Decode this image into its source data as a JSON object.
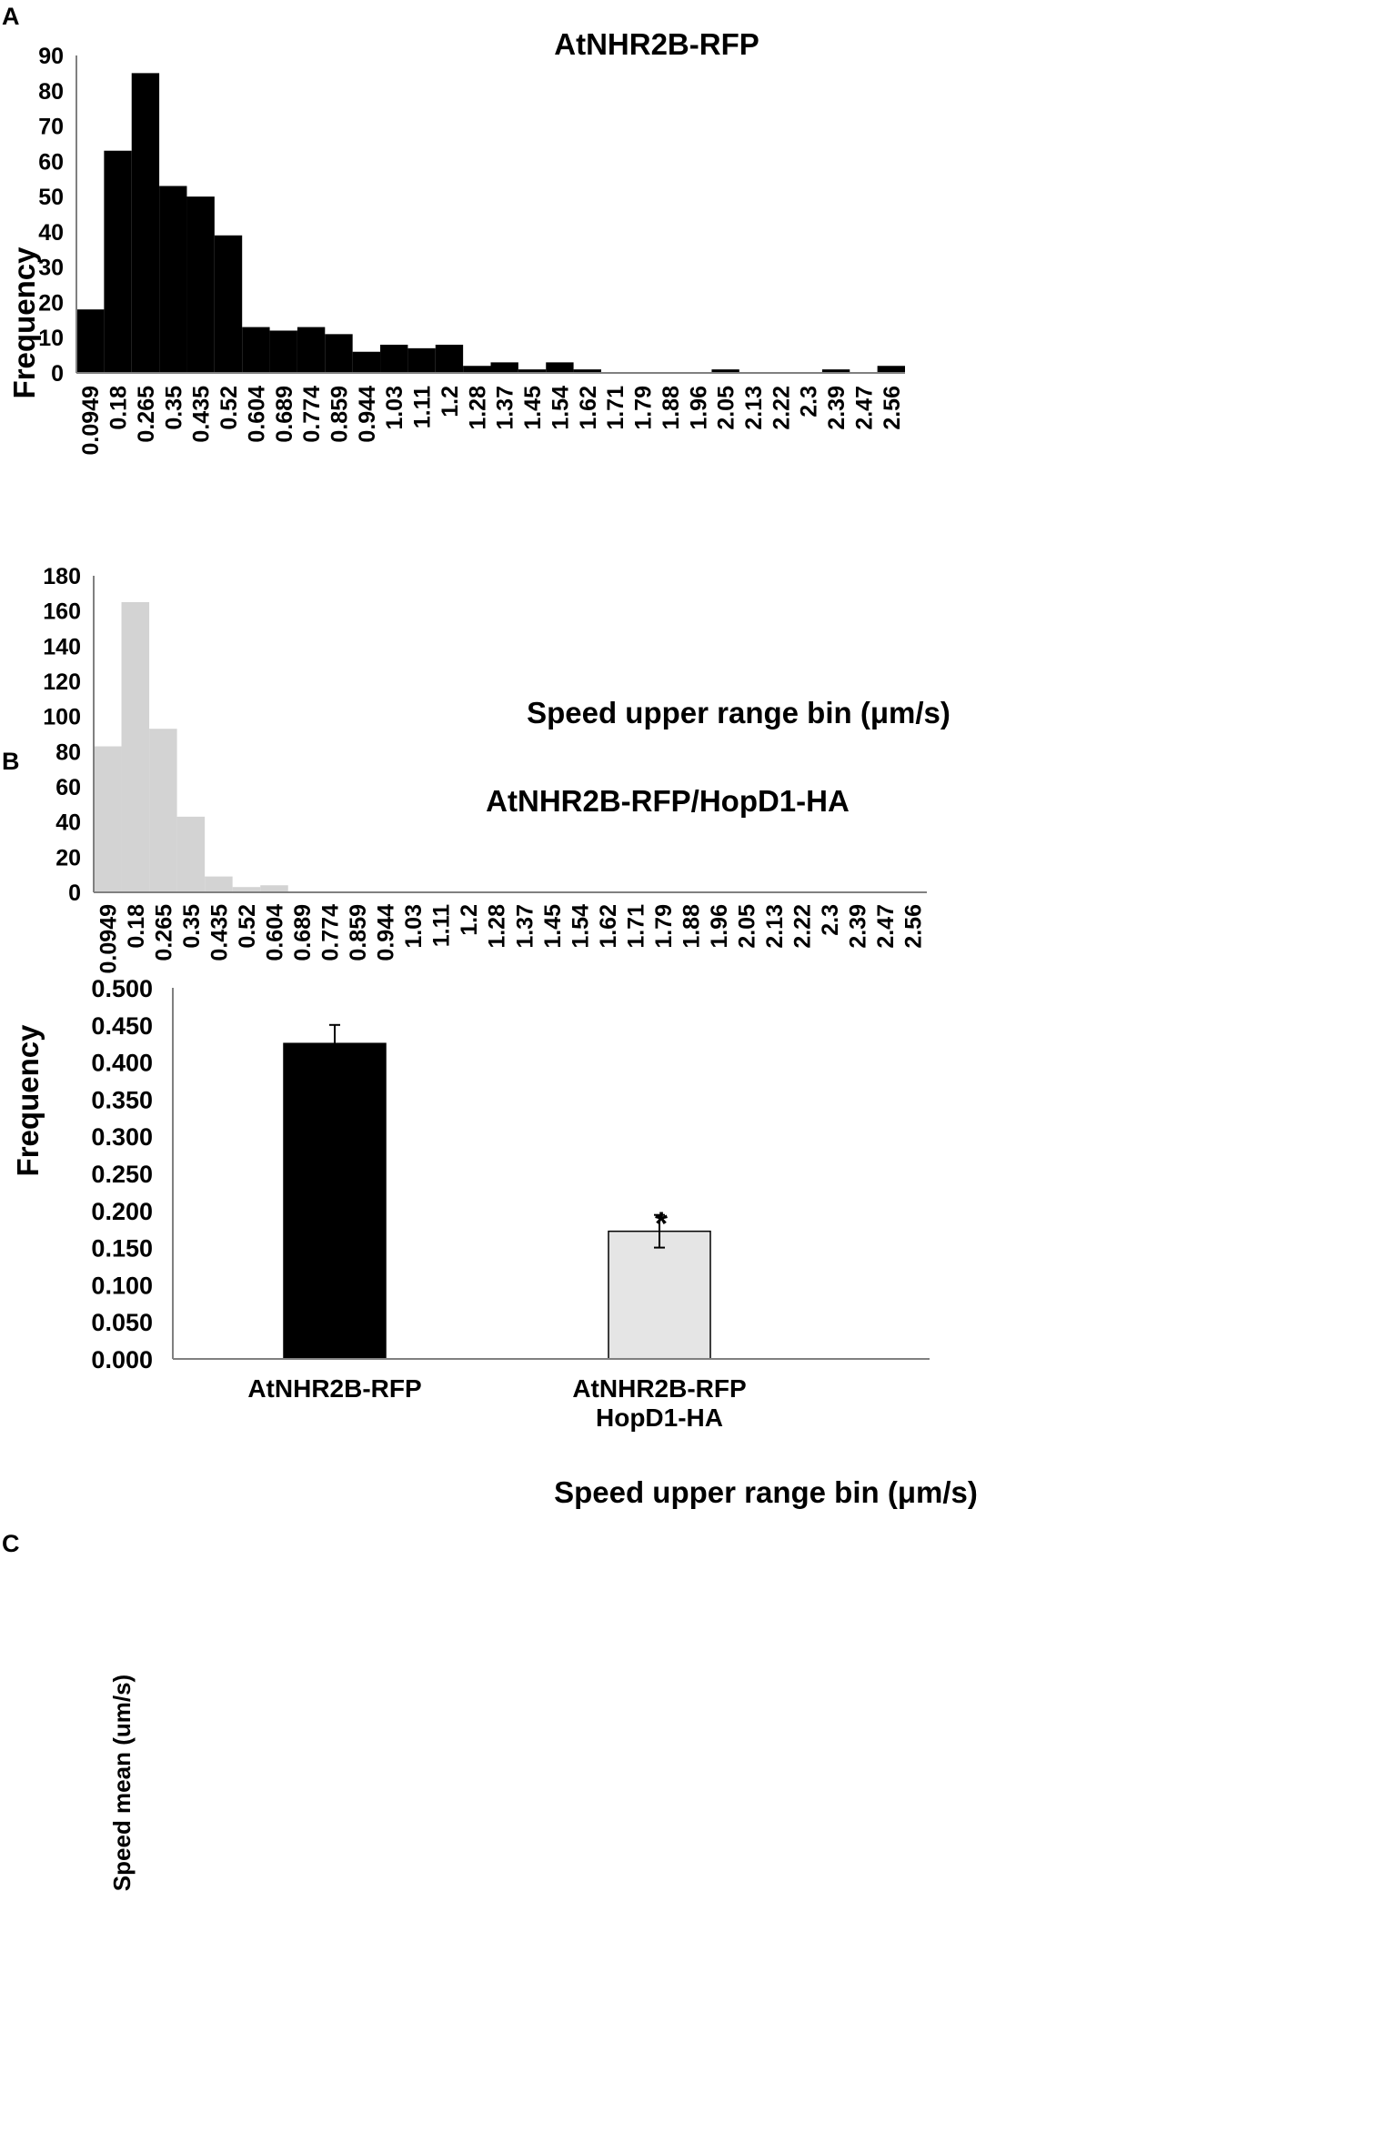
{
  "colors": {
    "panel_a_bar": "#000000",
    "panel_b_bar": "#d3d3d3",
    "panel_c_bar1": "#000000",
    "panel_c_bar2": "#e5e5e5"
  },
  "chart_data": [
    {
      "panel": "A",
      "type": "bar",
      "title": "AtNHR2B-RFP",
      "xlabel": "Speed upper range bin (μm/s)",
      "ylabel": "Frequency",
      "ylim": [
        0,
        90
      ],
      "yticks": [
        "0",
        "10",
        "20",
        "30",
        "40",
        "50",
        "60",
        "70",
        "80",
        "90"
      ],
      "categories": [
        "0.0949",
        "0.18",
        "0.265",
        "0.35",
        "0.435",
        "0.52",
        "0.604",
        "0.689",
        "0.774",
        "0.859",
        "0.944",
        "1.03",
        "1.11",
        "1.2",
        "1.28",
        "1.37",
        "1.45",
        "1.54",
        "1.62",
        "1.71",
        "1.79",
        "1.88",
        "1.96",
        "2.05",
        "2.13",
        "2.22",
        "2.3",
        "2.39",
        "2.47",
        "2.56"
      ],
      "values": [
        18,
        63,
        85,
        53,
        50,
        39,
        13,
        12,
        13,
        11,
        6,
        8,
        7,
        8,
        2,
        3,
        1,
        3,
        1,
        0,
        0,
        0,
        0,
        1,
        0,
        0,
        0,
        1,
        0,
        2
      ]
    },
    {
      "panel": "B",
      "type": "bar",
      "title": "AtNHR2B-RFP/HopD1-HA",
      "xlabel": "Speed upper range bin (μm/s)",
      "ylabel": "Frequency",
      "ylim": [
        0,
        180
      ],
      "yticks": [
        "0",
        "20",
        "40",
        "60",
        "80",
        "100",
        "120",
        "140",
        "160",
        "180"
      ],
      "categories": [
        "0.0949",
        "0.18",
        "0.265",
        "0.35",
        "0.435",
        "0.52",
        "0.604",
        "0.689",
        "0.774",
        "0.859",
        "0.944",
        "1.03",
        "1.11",
        "1.2",
        "1.28",
        "1.37",
        "1.45",
        "1.54",
        "1.62",
        "1.71",
        "1.79",
        "1.88",
        "1.96",
        "2.05",
        "2.13",
        "2.22",
        "2.3",
        "2.39",
        "2.47",
        "2.56"
      ],
      "values": [
        83,
        165,
        93,
        43,
        9,
        3,
        4,
        0,
        0,
        0,
        0,
        0,
        0,
        0,
        0,
        0,
        0,
        0,
        0,
        0,
        0,
        0,
        0,
        0,
        0,
        0,
        0,
        0,
        0,
        0
      ]
    },
    {
      "panel": "C",
      "type": "bar",
      "ylabel": "Speed mean (um/s)",
      "ylim": [
        0,
        0.5
      ],
      "yticks": [
        "0.000",
        "0.050",
        "0.100",
        "0.150",
        "0.200",
        "0.250",
        "0.300",
        "0.350",
        "0.400",
        "0.450",
        "0.500"
      ],
      "categories": [
        [
          "AtNHR2B-RFP"
        ],
        [
          "AtNHR2B-RFP",
          "HopD1-HA"
        ]
      ],
      "values": [
        0.425,
        0.172
      ],
      "errors": [
        0.025,
        0.022
      ],
      "annotations": [
        "",
        "*"
      ]
    }
  ]
}
